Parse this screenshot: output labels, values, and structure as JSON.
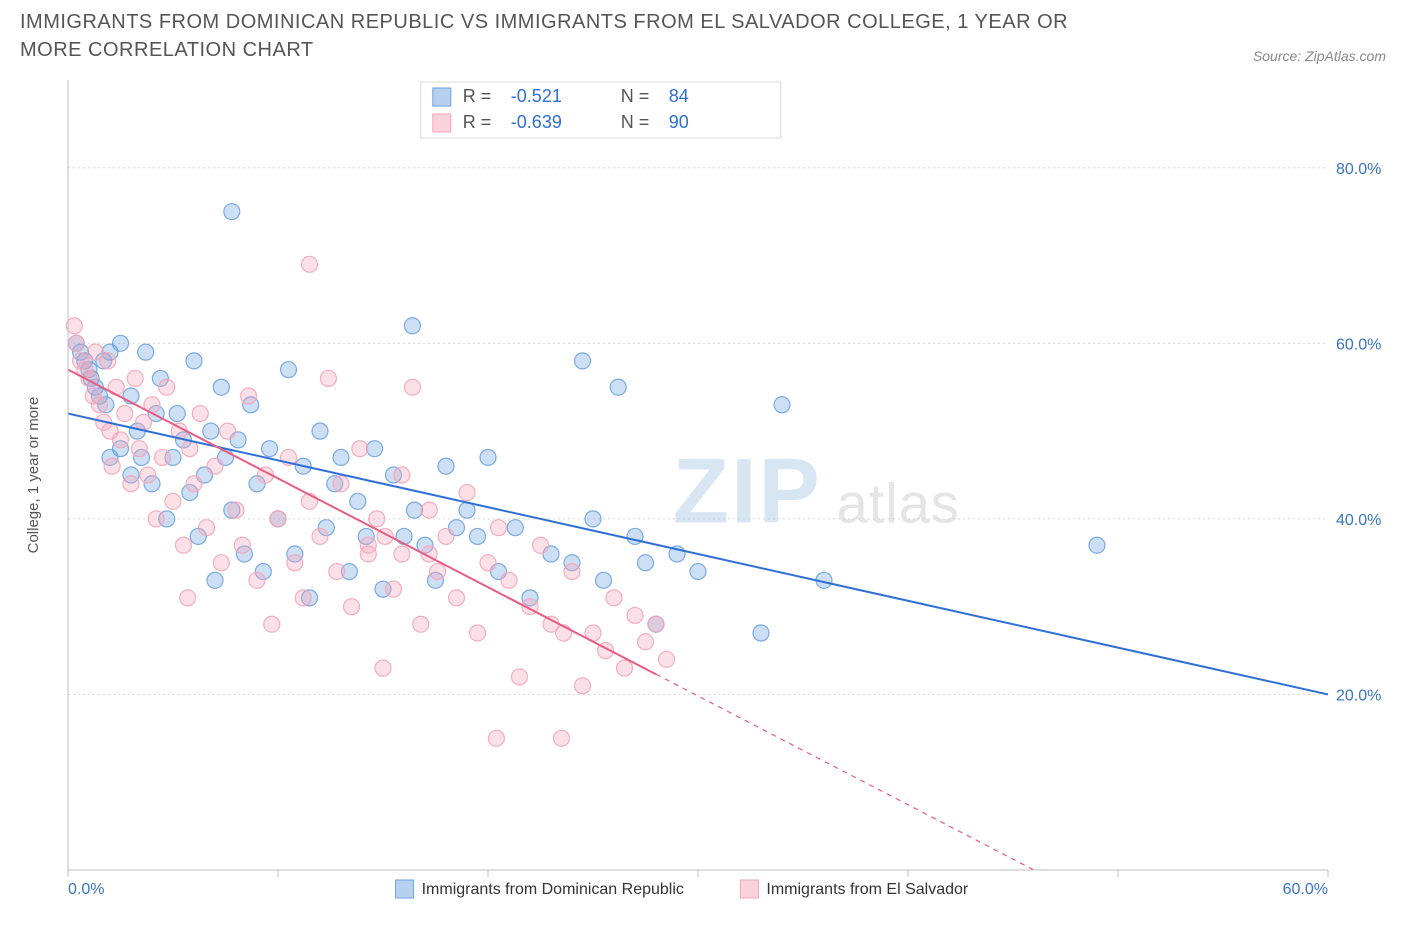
{
  "title": "IMMIGRANTS FROM DOMINICAN REPUBLIC VS IMMIGRANTS FROM EL SALVADOR COLLEGE, 1 YEAR OR MORE CORRELATION CHART",
  "source": "Source: ZipAtlas.com",
  "watermark_main": "ZIP",
  "watermark_sub": "atlas",
  "y_axis_label": "College, 1 year or more",
  "chart": {
    "type": "scatter",
    "background_color": "#ffffff",
    "grid_color": "#d8d8d8",
    "axis_color": "#bfbfbf",
    "tick_label_color": "#3a74c4",
    "x_domain": [
      0,
      60
    ],
    "y_domain": [
      0,
      90
    ],
    "x_ticks": [
      0,
      10,
      20,
      30,
      40,
      50,
      60
    ],
    "x_tick_labels": {
      "0": "0.0%",
      "60": "60.0%"
    },
    "y_ticks": [
      20,
      40,
      60,
      80
    ],
    "y_tick_labels": {
      "20": "20.0%",
      "40": "40.0%",
      "60": "60.0%",
      "80": "80.0%"
    },
    "marker_radius": 8,
    "marker_fill_opacity": 0.35,
    "marker_stroke_opacity": 0.9,
    "marker_stroke_width": 1.2,
    "trend_line_width": 2,
    "series": [
      {
        "key": "dominican",
        "label": "Immigrants from Dominican Republic",
        "color": "#6ea3e0",
        "line_color": "#2e6fd6",
        "R": "-0.521",
        "N": "84",
        "trend": {
          "x1": 0,
          "y1": 52,
          "x2": 60,
          "y2": 20,
          "solid_until_x": 60
        },
        "points": [
          [
            0.4,
            60
          ],
          [
            0.6,
            59
          ],
          [
            0.8,
            58
          ],
          [
            1,
            57
          ],
          [
            1.1,
            56
          ],
          [
            1.3,
            55
          ],
          [
            1.5,
            54
          ],
          [
            1.7,
            58
          ],
          [
            1.8,
            53
          ],
          [
            2,
            59
          ],
          [
            2,
            47
          ],
          [
            2.5,
            60
          ],
          [
            2.5,
            48
          ],
          [
            3,
            45
          ],
          [
            3,
            54
          ],
          [
            3.3,
            50
          ],
          [
            3.5,
            47
          ],
          [
            3.7,
            59
          ],
          [
            4,
            44
          ],
          [
            4.2,
            52
          ],
          [
            4.4,
            56
          ],
          [
            4.7,
            40
          ],
          [
            5,
            47
          ],
          [
            5.2,
            52
          ],
          [
            5.5,
            49
          ],
          [
            5.8,
            43
          ],
          [
            6,
            58
          ],
          [
            6.2,
            38
          ],
          [
            6.5,
            45
          ],
          [
            6.8,
            50
          ],
          [
            7,
            33
          ],
          [
            7.3,
            55
          ],
          [
            7.5,
            47
          ],
          [
            7.8,
            41
          ],
          [
            7.8,
            75
          ],
          [
            8.1,
            49
          ],
          [
            8.4,
            36
          ],
          [
            8.7,
            53
          ],
          [
            9,
            44
          ],
          [
            9.3,
            34
          ],
          [
            9.6,
            48
          ],
          [
            10,
            40
          ],
          [
            10.5,
            57
          ],
          [
            10.8,
            36
          ],
          [
            11.2,
            46
          ],
          [
            11.5,
            31
          ],
          [
            12,
            50
          ],
          [
            12.3,
            39
          ],
          [
            12.7,
            44
          ],
          [
            13,
            47
          ],
          [
            13.4,
            34
          ],
          [
            13.8,
            42
          ],
          [
            14.2,
            38
          ],
          [
            14.6,
            48
          ],
          [
            15,
            32
          ],
          [
            15.5,
            45
          ],
          [
            16,
            38
          ],
          [
            16.4,
            62
          ],
          [
            16.5,
            41
          ],
          [
            17,
            37
          ],
          [
            17.5,
            33
          ],
          [
            18,
            46
          ],
          [
            18.5,
            39
          ],
          [
            19,
            41
          ],
          [
            19.5,
            38
          ],
          [
            20,
            47
          ],
          [
            20.5,
            34
          ],
          [
            21.3,
            39
          ],
          [
            22,
            31
          ],
          [
            23,
            36
          ],
          [
            24,
            35
          ],
          [
            24.5,
            58
          ],
          [
            25,
            40
          ],
          [
            25.5,
            33
          ],
          [
            26.2,
            55
          ],
          [
            27,
            38
          ],
          [
            27.5,
            35
          ],
          [
            28,
            28
          ],
          [
            29,
            36
          ],
          [
            30,
            34
          ],
          [
            33,
            27
          ],
          [
            34,
            53
          ],
          [
            36,
            33
          ],
          [
            49,
            37
          ]
        ]
      },
      {
        "key": "elsalvador",
        "label": "Immigrants from El Salvador",
        "color": "#f4a5b9",
        "line_color": "#e85d82",
        "R": "-0.639",
        "N": "90",
        "trend": {
          "x1": 0,
          "y1": 57,
          "x2": 46,
          "y2": 0,
          "solid_until_x": 28
        },
        "points": [
          [
            0.3,
            62
          ],
          [
            0.4,
            60
          ],
          [
            0.6,
            58
          ],
          [
            0.8,
            57
          ],
          [
            1,
            56
          ],
          [
            1.2,
            54
          ],
          [
            1.3,
            59
          ],
          [
            1.5,
            53
          ],
          [
            1.7,
            51
          ],
          [
            1.9,
            58
          ],
          [
            2,
            50
          ],
          [
            2.1,
            46
          ],
          [
            2.3,
            55
          ],
          [
            2.5,
            49
          ],
          [
            2.7,
            52
          ],
          [
            3,
            44
          ],
          [
            3.2,
            56
          ],
          [
            3.4,
            48
          ],
          [
            3.6,
            51
          ],
          [
            3.8,
            45
          ],
          [
            4,
            53
          ],
          [
            4.2,
            40
          ],
          [
            4.5,
            47
          ],
          [
            4.7,
            55
          ],
          [
            5,
            42
          ],
          [
            5.3,
            50
          ],
          [
            5.5,
            37
          ],
          [
            5.7,
            31
          ],
          [
            5.8,
            48
          ],
          [
            6,
            44
          ],
          [
            6.3,
            52
          ],
          [
            6.6,
            39
          ],
          [
            7,
            46
          ],
          [
            7.3,
            35
          ],
          [
            7.6,
            50
          ],
          [
            8,
            41
          ],
          [
            8.3,
            37
          ],
          [
            8.6,
            54
          ],
          [
            9,
            33
          ],
          [
            9.4,
            45
          ],
          [
            9.7,
            28
          ],
          [
            10,
            40
          ],
          [
            10.5,
            47
          ],
          [
            10.8,
            35
          ],
          [
            11.2,
            31
          ],
          [
            11.5,
            69
          ],
          [
            11.5,
            42
          ],
          [
            12,
            38
          ],
          [
            12.4,
            56
          ],
          [
            12.8,
            34
          ],
          [
            13,
            44
          ],
          [
            13.5,
            30
          ],
          [
            13.9,
            48
          ],
          [
            14.3,
            36
          ],
          [
            14.3,
            37
          ],
          [
            14.7,
            40
          ],
          [
            15,
            23
          ],
          [
            15.1,
            38
          ],
          [
            15.5,
            32
          ],
          [
            15.9,
            36
          ],
          [
            15.9,
            45
          ],
          [
            16.4,
            55
          ],
          [
            16.8,
            28
          ],
          [
            17.2,
            36
          ],
          [
            17.2,
            41
          ],
          [
            17.6,
            34
          ],
          [
            18,
            38
          ],
          [
            18.5,
            31
          ],
          [
            19,
            43
          ],
          [
            19.5,
            27
          ],
          [
            20,
            35
          ],
          [
            20.4,
            15
          ],
          [
            20.5,
            39
          ],
          [
            21,
            33
          ],
          [
            21.5,
            22
          ],
          [
            22,
            30
          ],
          [
            22.5,
            37
          ],
          [
            23,
            28
          ],
          [
            23.5,
            15
          ],
          [
            23.6,
            27
          ],
          [
            24,
            34
          ],
          [
            24.5,
            21
          ],
          [
            25,
            27
          ],
          [
            25.6,
            25
          ],
          [
            26,
            31
          ],
          [
            26.5,
            23
          ],
          [
            27,
            29
          ],
          [
            27.5,
            26
          ],
          [
            28,
            28
          ],
          [
            28.5,
            24
          ]
        ]
      }
    ],
    "legend_top": {
      "R_label": "R =",
      "N_label": "N ="
    },
    "legend_bottom_swatch_stroke_width": 1
  }
}
